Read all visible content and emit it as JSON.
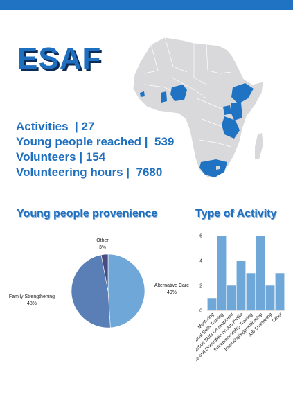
{
  "header": {
    "title": "ESAF"
  },
  "stats": [
    {
      "label": "Activities",
      "value": "27"
    },
    {
      "label": "Young people reached",
      "value": "539"
    },
    {
      "label": "Volunteers",
      "value": "154"
    },
    {
      "label": "Volunteering hours",
      "value": "7680"
    }
  ],
  "colors": {
    "accent": "#1e6fbf",
    "map_land": "#d9d9db",
    "map_highlight": "#1f73c2",
    "bar": "#6fa8d8"
  },
  "chart_data": [
    {
      "type": "pie",
      "title": "Young people provenience",
      "slices": [
        {
          "label": "Alternative Care",
          "percent": "49%",
          "value": 49,
          "color": "#6fa8d8"
        },
        {
          "label": "Family Strengthening",
          "percent": "48%",
          "value": 48,
          "color": "#5a7fb6"
        },
        {
          "label": "Other",
          "percent": "3%",
          "value": 3,
          "color": "#4b4a80"
        }
      ]
    },
    {
      "type": "bar",
      "title": "Type of Activity",
      "categories": [
        "Mentoring",
        "Professional Skills Training",
        "Life/Soft Skills Development",
        "Career Guidance and Orientation on Job Profile",
        "Entrepreneurship Training",
        "Internship/Apprenticeship",
        "Job Shadowing",
        "Other"
      ],
      "values": [
        1,
        6,
        2,
        4,
        3,
        6,
        2,
        3
      ],
      "ylim": [
        0,
        6
      ],
      "yticks": [
        "0",
        "2",
        "4",
        "6"
      ],
      "grid": false
    }
  ]
}
